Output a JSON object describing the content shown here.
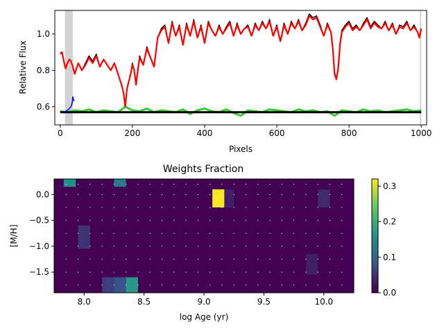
{
  "chart_data": [
    {
      "type": "line",
      "title": "",
      "xlabel": "Pixels",
      "ylabel": "Relative Flux",
      "xlim": [
        -15,
        1015
      ],
      "ylim": [
        0.5,
        1.13
      ],
      "xticks": [
        0,
        200,
        400,
        600,
        800,
        1000
      ],
      "yticks": [
        0.6,
        0.8,
        1.0
      ],
      "xtick_labels": [
        "0",
        "200",
        "400",
        "600",
        "800",
        "1000"
      ],
      "ytick_labels": [
        "0.6",
        "0.8",
        "1.0"
      ],
      "masked_regions": [
        [
          13,
          35
        ],
        [
          996,
          1000
        ]
      ],
      "series": [
        {
          "color": "#000000",
          "x": [
            0,
            5,
            10,
            15,
            20,
            25,
            30,
            35,
            40,
            50,
            60,
            70,
            80,
            90,
            100,
            110,
            120,
            130,
            140,
            150,
            160,
            170,
            175,
            180,
            185,
            190,
            195,
            200,
            205,
            210,
            215,
            220,
            230,
            240,
            250,
            260,
            270,
            280,
            290,
            300,
            310,
            320,
            330,
            340,
            350,
            360,
            370,
            380,
            390,
            400,
            410,
            420,
            430,
            440,
            450,
            460,
            470,
            480,
            490,
            500,
            510,
            520,
            530,
            540,
            550,
            560,
            570,
            580,
            590,
            600,
            610,
            620,
            630,
            640,
            650,
            660,
            670,
            680,
            690,
            700,
            710,
            720,
            730,
            740,
            750,
            755,
            760,
            765,
            770,
            775,
            780,
            790,
            800,
            810,
            820,
            830,
            840,
            850,
            860,
            870,
            880,
            890,
            900,
            910,
            920,
            930,
            940,
            950,
            960,
            970,
            980,
            990,
            995,
            1000
          ],
          "values": [
            0.89,
            0.9,
            0.85,
            0.81,
            0.84,
            0.86,
            0.85,
            0.82,
            0.78,
            0.84,
            0.8,
            0.84,
            0.88,
            0.85,
            0.89,
            0.82,
            0.86,
            0.83,
            0.8,
            0.84,
            0.78,
            0.72,
            0.68,
            0.61,
            0.7,
            0.74,
            0.78,
            0.84,
            0.8,
            0.72,
            0.81,
            0.88,
            0.83,
            0.93,
            0.87,
            0.82,
            0.98,
            1.03,
            1.05,
            0.95,
            1.07,
            0.99,
            1.05,
            0.94,
            1.06,
            0.99,
            1.08,
            0.98,
            1.05,
            0.95,
            1.07,
            1.02,
            0.99,
            1.05,
            1.0,
            1.04,
            1.07,
            0.99,
            1.06,
            1.0,
            1.03,
            1.05,
            0.99,
            1.06,
            1.02,
            1.07,
            1.03,
            1.08,
            0.99,
            1.05,
            0.96,
            1.06,
            1.0,
            1.07,
            1.03,
            1.08,
            1.02,
            1.06,
            1.11,
            1.09,
            1.1,
            1.05,
            0.99,
            1.06,
            1.01,
            0.92,
            0.79,
            0.75,
            0.82,
            0.95,
            1.02,
            1.05,
            1.07,
            1.03,
            1.05,
            1.02,
            1.06,
            1.09,
            1.04,
            1.07,
            1.05,
            1.03,
            1.07,
            1.02,
            1.06,
            1.0,
            1.05,
            1.04,
            1.07,
            1.02,
            1.05,
            1.01,
            0.98,
            1.03
          ]
        },
        {
          "color": "#ff0000",
          "x": [
            0,
            5,
            10,
            15,
            20,
            25,
            30,
            35,
            40,
            50,
            60,
            70,
            80,
            90,
            100,
            110,
            120,
            130,
            140,
            150,
            160,
            170,
            175,
            180,
            185,
            190,
            195,
            200,
            205,
            210,
            215,
            220,
            230,
            240,
            250,
            260,
            270,
            280,
            290,
            300,
            310,
            320,
            330,
            340,
            350,
            360,
            370,
            380,
            390,
            400,
            410,
            420,
            430,
            440,
            450,
            460,
            470,
            480,
            490,
            500,
            510,
            520,
            530,
            540,
            550,
            560,
            570,
            580,
            590,
            600,
            610,
            620,
            630,
            640,
            650,
            660,
            670,
            680,
            690,
            700,
            710,
            720,
            730,
            740,
            750,
            755,
            760,
            765,
            770,
            775,
            780,
            790,
            800,
            810,
            820,
            830,
            840,
            850,
            860,
            870,
            880,
            890,
            900,
            910,
            920,
            930,
            940,
            950,
            960,
            970,
            980,
            990,
            995,
            1000
          ],
          "values": [
            0.89,
            0.9,
            0.85,
            0.81,
            0.84,
            0.86,
            0.85,
            0.82,
            0.78,
            0.84,
            0.8,
            0.83,
            0.87,
            0.84,
            0.88,
            0.82,
            0.86,
            0.83,
            0.8,
            0.84,
            0.78,
            0.72,
            0.68,
            0.6,
            0.7,
            0.74,
            0.78,
            0.83,
            0.8,
            0.72,
            0.8,
            0.87,
            0.83,
            0.92,
            0.87,
            0.82,
            0.98,
            1.02,
            1.04,
            0.95,
            1.06,
            0.99,
            1.04,
            0.94,
            1.05,
            0.99,
            1.07,
            0.98,
            1.04,
            0.95,
            1.06,
            1.02,
            0.99,
            1.04,
            1.0,
            1.03,
            1.06,
            0.99,
            1.05,
            1.0,
            1.03,
            1.04,
            0.99,
            1.05,
            1.02,
            1.06,
            1.03,
            1.07,
            0.99,
            1.04,
            0.96,
            1.05,
            1.0,
            1.06,
            1.03,
            1.07,
            1.02,
            1.05,
            1.1,
            1.08,
            1.09,
            1.04,
            0.99,
            1.05,
            1.01,
            0.92,
            0.78,
            0.75,
            0.81,
            0.94,
            1.01,
            1.04,
            1.06,
            1.02,
            1.04,
            1.02,
            1.05,
            1.08,
            1.03,
            1.06,
            1.04,
            1.03,
            1.06,
            1.02,
            1.05,
            1.0,
            1.04,
            1.03,
            1.06,
            1.02,
            1.04,
            1.01,
            0.98,
            1.03
          ]
        },
        {
          "color": "#33cc33",
          "x": [
            0,
            20,
            40,
            60,
            80,
            100,
            120,
            140,
            160,
            180,
            200,
            220,
            240,
            260,
            280,
            300,
            320,
            340,
            360,
            380,
            400,
            420,
            440,
            460,
            480,
            500,
            520,
            540,
            560,
            580,
            600,
            620,
            640,
            660,
            680,
            700,
            720,
            740,
            760,
            780,
            800,
            820,
            840,
            860,
            880,
            900,
            920,
            940,
            960,
            980,
            1000
          ],
          "values": [
            0.575,
            0.57,
            0.58,
            0.575,
            0.585,
            0.57,
            0.58,
            0.575,
            0.57,
            0.6,
            0.58,
            0.575,
            0.59,
            0.57,
            0.58,
            0.575,
            0.57,
            0.585,
            0.56,
            0.58,
            0.59,
            0.575,
            0.57,
            0.585,
            0.565,
            0.55,
            0.58,
            0.575,
            0.57,
            0.585,
            0.58,
            0.575,
            0.57,
            0.585,
            0.575,
            0.58,
            0.57,
            0.575,
            0.55,
            0.58,
            0.575,
            0.57,
            0.585,
            0.575,
            0.58,
            0.57,
            0.575,
            0.58,
            0.585,
            0.575,
            0.58
          ]
        },
        {
          "color": "#0000ff",
          "x": [
            10,
            15,
            20,
            25,
            30,
            33,
            35,
            38
          ],
          "values": [
            0.57,
            0.575,
            0.58,
            0.59,
            0.6,
            0.62,
            0.655,
            0.63
          ]
        }
      ],
      "baseline": {
        "color": "#000000",
        "x": [
          0,
          1000
        ],
        "values": [
          0.57,
          0.57
        ]
      }
    },
    {
      "type": "heatmap",
      "title": "Weights Fraction",
      "xlabel": "log Age (yr)",
      "ylabel": "[M/H]",
      "xlim": [
        7.75,
        10.25
      ],
      "ylim": [
        -1.9,
        0.3
      ],
      "xticks": [
        8.0,
        8.5,
        9.0,
        9.5,
        10.0
      ],
      "yticks": [
        0.0,
        -0.5,
        -1.0,
        -1.5
      ],
      "xtick_labels": [
        "8.0",
        "8.5",
        "9.0",
        "9.5",
        "10.0"
      ],
      "ytick_labels": [
        "0.0",
        "−0.5",
        "−1.0",
        "−1.5"
      ],
      "colorbar": {
        "vmin": 0.0,
        "vmax": 0.32,
        "ticks": [
          0.0,
          0.1,
          0.2,
          0.3
        ],
        "tick_labels": [
          "0.0",
          "0.1",
          "0.2",
          "0.3"
        ],
        "colormap": "viridis"
      },
      "background_value": 0.0,
      "grid_ages": [
        7.85,
        7.95,
        8.05,
        8.15,
        8.25,
        8.35,
        8.45,
        8.55,
        8.65,
        8.75,
        8.85,
        8.95,
        9.05,
        9.15,
        9.25,
        9.35,
        9.45,
        9.55,
        9.65,
        9.75,
        9.85,
        9.95,
        10.05,
        10.15
      ],
      "grid_metals": [
        0.2,
        0.0,
        -0.25,
        -0.5,
        -0.75,
        -1.0,
        -1.25,
        -1.5,
        -1.75
      ],
      "cells": [
        {
          "age": [
            7.83,
            7.93
          ],
          "mh": [
            0.15,
            0.3
          ],
          "value": 0.16
        },
        {
          "age": [
            8.25,
            8.35
          ],
          "mh": [
            0.15,
            0.3
          ],
          "value": 0.13
        },
        {
          "age": [
            9.07,
            9.17
          ],
          "mh": [
            -0.25,
            0.1
          ],
          "value": 0.32
        },
        {
          "age": [
            9.17,
            9.25
          ],
          "mh": [
            -0.25,
            0.1
          ],
          "value": 0.03
        },
        {
          "age": [
            9.95,
            10.05
          ],
          "mh": [
            -0.25,
            0.1
          ],
          "value": 0.04
        },
        {
          "age": [
            7.95,
            8.05
          ],
          "mh": [
            -1.05,
            -0.6
          ],
          "value": 0.05
        },
        {
          "age": [
            9.85,
            9.95
          ],
          "mh": [
            -1.55,
            -1.15
          ],
          "value": 0.03
        },
        {
          "age": [
            8.15,
            8.25
          ],
          "mh": [
            -1.9,
            -1.6
          ],
          "value": 0.06
        },
        {
          "age": [
            8.25,
            8.35
          ],
          "mh": [
            -1.9,
            -1.6
          ],
          "value": 0.08
        },
        {
          "age": [
            8.35,
            8.45
          ],
          "mh": [
            -1.9,
            -1.6
          ],
          "value": 0.17
        }
      ]
    }
  ]
}
